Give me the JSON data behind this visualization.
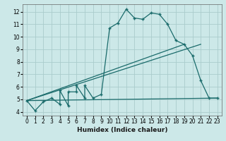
{
  "title": "",
  "xlabel": "Humidex (Indice chaleur)",
  "ylabel": "",
  "bg_color": "#cce8e8",
  "grid_color": "#aacccc",
  "line_color": "#1a6b6b",
  "xlim": [
    -0.5,
    23.5
  ],
  "ylim": [
    3.7,
    12.6
  ],
  "xticks": [
    0,
    1,
    2,
    3,
    4,
    5,
    6,
    7,
    8,
    9,
    10,
    11,
    12,
    13,
    14,
    15,
    16,
    17,
    18,
    19,
    20,
    21,
    22,
    23
  ],
  "yticks": [
    4,
    5,
    6,
    7,
    8,
    9,
    10,
    11,
    12
  ],
  "curve_x": [
    0,
    1,
    2,
    3,
    4,
    4,
    5,
    5,
    6,
    6,
    7,
    7,
    8,
    9,
    10,
    11,
    12,
    13,
    14,
    15,
    16,
    17,
    18,
    19,
    20,
    21,
    22,
    23
  ],
  "curve_y": [
    4.9,
    4.1,
    4.8,
    5.1,
    4.6,
    5.7,
    4.5,
    5.6,
    5.6,
    6.1,
    5.1,
    6.1,
    5.1,
    5.4,
    10.7,
    11.1,
    12.2,
    11.5,
    11.4,
    11.9,
    11.8,
    11.0,
    9.7,
    9.4,
    8.5,
    6.5,
    5.1,
    5.1
  ],
  "line1_x": [
    0,
    23
  ],
  "line1_y": [
    4.9,
    5.1
  ],
  "line2_x": [
    0,
    19
  ],
  "line2_y": [
    4.9,
    9.4
  ],
  "line3_x": [
    0,
    21
  ],
  "line3_y": [
    4.9,
    9.4
  ]
}
